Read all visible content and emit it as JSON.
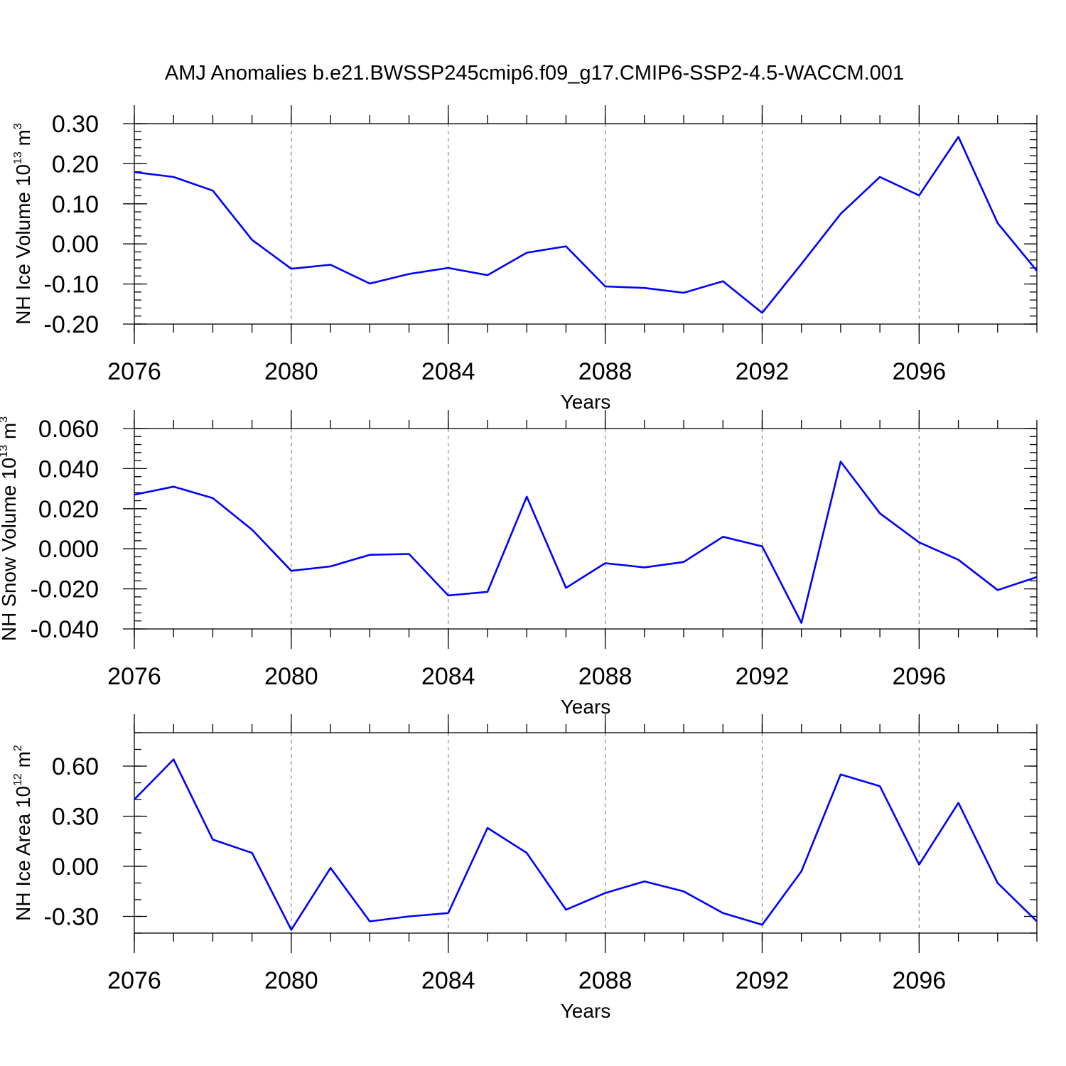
{
  "title": "AMJ Anomalies b.e21.BWSSP245cmip6.f09_g17.CMIP6-SSP2-4.5-WACCM.001",
  "chart_data": [
    {
      "type": "line",
      "name": "ice-volume",
      "title": "AMJ Anomalies b.e21.BWSSP245cmip6.f09_g17.CMIP6-SSP2-4.5-WACCM.001",
      "xlabel": "Years",
      "ylabel_main": "NH Ice Volume 10",
      "ylabel_exp": "13",
      "ylabel_unit": " m",
      "ylabel_unit_exp": "3",
      "xlim": [
        2076,
        2099
      ],
      "ylim": [
        -0.2,
        0.3
      ],
      "yticks": [
        -0.2,
        -0.1,
        0.0,
        0.1,
        0.2,
        0.3
      ],
      "ytick_labels": [
        "-0.20",
        "-0.10",
        "0.00",
        "0.10",
        "0.20",
        "0.30"
      ],
      "yminor_step": 0.02,
      "xticks": [
        2076,
        2080,
        2084,
        2088,
        2092,
        2096
      ],
      "xtick_labels": [
        "2076",
        "2080",
        "2084",
        "2088",
        "2092",
        "2096"
      ],
      "grid_x": [
        2080,
        2084,
        2088,
        2092,
        2096
      ],
      "series": [
        {
          "name": "NH Ice Volume",
          "color": "#0000ff",
          "x": [
            2076,
            2077,
            2078,
            2079,
            2080,
            2081,
            2082,
            2083,
            2084,
            2085,
            2086,
            2087,
            2088,
            2089,
            2090,
            2091,
            2092,
            2093,
            2094,
            2095,
            2096,
            2097,
            2098,
            2099
          ],
          "values": [
            0.179,
            0.167,
            0.133,
            0.01,
            -0.062,
            -0.052,
            -0.099,
            -0.075,
            -0.06,
            -0.078,
            -0.022,
            -0.006,
            -0.106,
            -0.11,
            -0.122,
            -0.093,
            -0.172,
            -0.05,
            0.075,
            0.167,
            0.121,
            0.267,
            0.052,
            -0.067
          ]
        }
      ]
    },
    {
      "type": "line",
      "name": "snow-volume",
      "xlabel": "Years",
      "ylabel_main": "NH Snow Volume 10",
      "ylabel_exp": "13",
      "ylabel_unit": " m",
      "ylabel_unit_exp": "3",
      "xlim": [
        2076,
        2099
      ],
      "ylim": [
        -0.04,
        0.06
      ],
      "yticks": [
        -0.04,
        -0.02,
        0.0,
        0.02,
        0.04,
        0.06
      ],
      "ytick_labels": [
        "-0.040",
        "-0.020",
        "0.000",
        "0.020",
        "0.040",
        "0.060"
      ],
      "yminor_step": 0.004,
      "xticks": [
        2076,
        2080,
        2084,
        2088,
        2092,
        2096
      ],
      "xtick_labels": [
        "2076",
        "2080",
        "2084",
        "2088",
        "2092",
        "2096"
      ],
      "grid_x": [
        2080,
        2084,
        2088,
        2092,
        2096
      ],
      "series": [
        {
          "name": "NH Snow Volume",
          "color": "#0000ff",
          "x": [
            2076,
            2077,
            2078,
            2079,
            2080,
            2081,
            2082,
            2083,
            2084,
            2085,
            2086,
            2087,
            2088,
            2089,
            2090,
            2091,
            2092,
            2093,
            2094,
            2095,
            2096,
            2097,
            2098,
            2099
          ],
          "values": [
            0.027,
            0.031,
            0.0253,
            0.0095,
            -0.011,
            -0.0088,
            -0.003,
            -0.0026,
            -0.0233,
            -0.0215,
            0.026,
            -0.0195,
            -0.0072,
            -0.0093,
            -0.0066,
            0.006,
            0.0012,
            -0.037,
            0.0435,
            0.0177,
            0.0032,
            -0.0055,
            -0.0206,
            -0.0141
          ]
        }
      ]
    },
    {
      "type": "line",
      "name": "ice-area",
      "xlabel": "Years",
      "ylabel_main": "NH Ice Area 10",
      "ylabel_exp": "12",
      "ylabel_unit": " m",
      "ylabel_unit_exp": "2",
      "xlim": [
        2076,
        2099
      ],
      "ylim": [
        -0.4,
        0.8
      ],
      "yticks": [
        -0.3,
        0.0,
        0.3,
        0.6
      ],
      "ytick_labels": [
        "-0.30",
        "0.00",
        "0.30",
        "0.60"
      ],
      "yminor_step": 0.1,
      "xticks": [
        2076,
        2080,
        2084,
        2088,
        2092,
        2096
      ],
      "xtick_labels": [
        "2076",
        "2080",
        "2084",
        "2088",
        "2092",
        "2096"
      ],
      "grid_x": [
        2080,
        2084,
        2088,
        2092,
        2096
      ],
      "series": [
        {
          "name": "NH Ice Area",
          "color": "#0000ff",
          "x": [
            2076,
            2077,
            2078,
            2079,
            2080,
            2081,
            2082,
            2083,
            2084,
            2085,
            2086,
            2087,
            2088,
            2089,
            2090,
            2091,
            2092,
            2093,
            2094,
            2095,
            2096,
            2097,
            2098,
            2099
          ],
          "values": [
            0.4,
            0.64,
            0.16,
            0.08,
            -0.38,
            -0.01,
            -0.33,
            -0.3,
            -0.28,
            0.23,
            0.08,
            -0.26,
            -0.16,
            -0.09,
            -0.15,
            -0.28,
            -0.35,
            -0.03,
            0.55,
            0.48,
            0.01,
            0.38,
            -0.1,
            -0.33
          ]
        }
      ]
    }
  ]
}
